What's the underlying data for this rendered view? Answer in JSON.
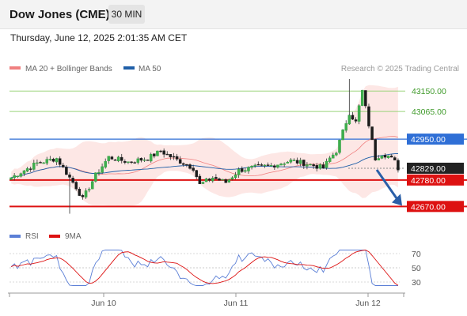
{
  "header": {
    "title": "Dow Jones (CME)",
    "interval": "30 MIN",
    "timestamp": "Thursday, June 12, 2025 2:01:35 AM CET"
  },
  "colors": {
    "bollinger": "#f08080",
    "ma50": "#1f5fa8",
    "rsi": "#5b7fd6",
    "rsi_ma": "#dd1111",
    "resistance_green": "#9ad47a",
    "resistance_blue": "#2f6fd6",
    "support_red": "#dd1111",
    "current_price": "#222222",
    "arrow": "#2a5fa8"
  },
  "chart_data": [
    {
      "type": "candlestick",
      "legend": [
        {
          "label": "MA 20 + Bollinger Bands",
          "color": "#f08080"
        },
        {
          "label": "MA 50",
          "color": "#1f5fa8"
        }
      ],
      "copyright": "Research © 2025 Trading Central",
      "x_ticks": [
        "Jun 10",
        "Jun 11",
        "Jun 12"
      ],
      "ylim": [
        42635,
        43200
      ],
      "levels": [
        {
          "value": 43150,
          "label": "43150.00",
          "style": "green"
        },
        {
          "value": 43065,
          "label": "43065.00",
          "style": "green"
        },
        {
          "value": 42950,
          "label": "42950.00",
          "style": "blue"
        },
        {
          "value": 42829,
          "label": "42829.00",
          "style": "current"
        },
        {
          "value": 42780,
          "label": "42780.00",
          "style": "red"
        },
        {
          "value": 42670,
          "label": "42670.00",
          "style": "red"
        }
      ],
      "forecast": {
        "from": 42829,
        "to": 42670,
        "direction": "down"
      }
    },
    {
      "type": "line",
      "legend": [
        {
          "label": "RSI",
          "color": "#5b7fd6"
        },
        {
          "label": "9MA",
          "color": "#dd1111"
        }
      ],
      "y_ticks": [
        "70",
        "50",
        "30"
      ],
      "ylim": [
        20,
        80
      ],
      "x_ticks": [
        "Jun 10",
        "Jun 11",
        "Jun 12"
      ]
    }
  ]
}
